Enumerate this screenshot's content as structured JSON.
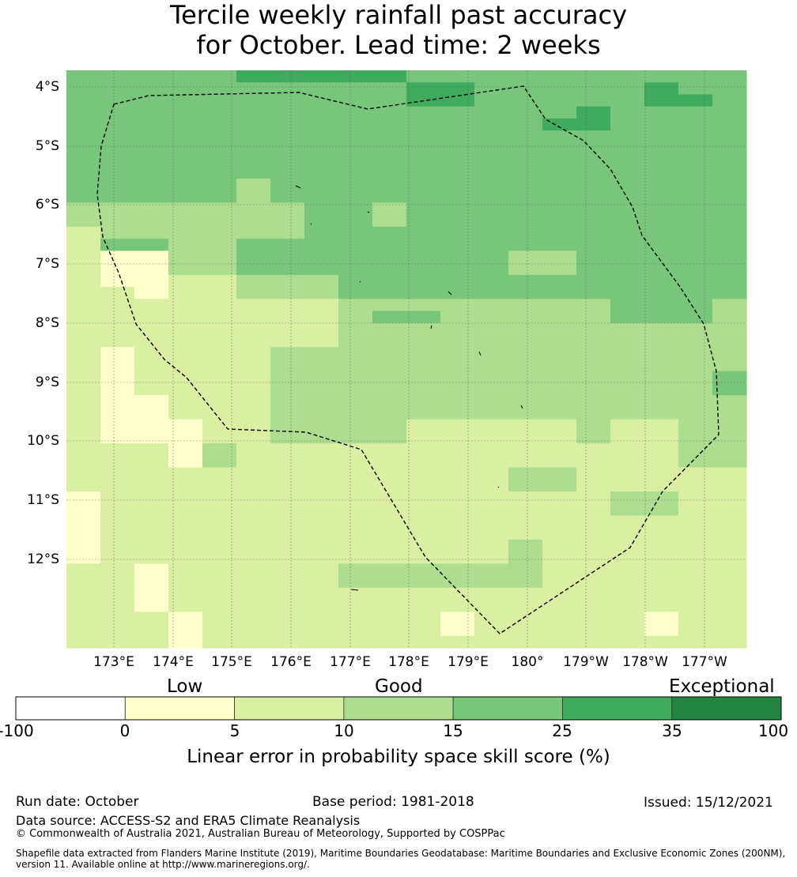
{
  "title": {
    "line1": "Tercile weekly rainfall past accuracy",
    "line2": "for October. Lead time: 2 weeks"
  },
  "map": {
    "lat_labels": [
      "4°S",
      "5°S",
      "6°S",
      "7°S",
      "8°S",
      "9°S",
      "10°S",
      "11°S",
      "12°S"
    ],
    "lon_labels": [
      "173°E",
      "174°E",
      "175°E",
      "176°E",
      "177°E",
      "178°E",
      "179°E",
      "180°",
      "179°W",
      "178°W",
      "177°W"
    ],
    "grid_rows_legend": "0:<0, 1:0-5, 2:5-10, 3:10-15, 4:15-25, 5:25-35, 6:35-100",
    "grid": [
      "44444555554444444444",
      "44444444445544444544",
      "44444444445544444554",
      "44444444444444454444",
      "44444444444444554444",
      "44444444444444444444",
      "44444444444444444444",
      "44444444444444444444",
      "44444444444444444444",
      "44444344444444444444",
      "44444344444444444444",
      "33333334434444444444",
      "33333334434444444444",
      "23333334444444444444",
      "24433444444444444444",
      "21133444444443344444",
      "21133444444443344444",
      "21122333444444444444",
      "22122333444444444444",
      "22222222333333334443",
      "22222222344333334443",
      "22222222333333333333",
      "22222222333333333333",
      "21222233333333333333",
      "21222233333333333333",
      "21222233333333333334",
      "21222233333333333334",
      "21122233333333333333",
      "21122233333333333333",
      "21112233332222232233",
      "21112233332222232233",
      "22213222222222222233",
      "22213222222222222233",
      "22222222222223322222",
      "22222222222223322222",
      "12222222222222223322",
      "12222222222222223322",
      "12222222222222222222",
      "12222222222222222222",
      "12222222222223222222",
      "12222222222223222222",
      "22122222333333222222",
      "22122222333333222222",
      "22122222222222222222",
      "22122222222222222222",
      "22212222222122222122",
      "22212222222122222122",
      "22212222222222222222"
    ]
  },
  "colorbar": {
    "category_labels": [
      "Low",
      "Good",
      "Exceptional"
    ],
    "ticks": [
      "-100",
      "0",
      "5",
      "10",
      "15",
      "25",
      "35",
      "100"
    ],
    "colors": [
      "#ffffff",
      "#ffffcc",
      "#d9f0a3",
      "#addd8e",
      "#78c679",
      "#41ab5d",
      "#238443"
    ],
    "title": "Linear error in probability space skill score (%)"
  },
  "footer": {
    "run_date": "Run date: October",
    "base_period": "Base period: 1981-2018",
    "issued": "Issued: 15/12/2021",
    "data_source": "Data source: ACCESS-S2 and ERA5 Climate Reanalysis",
    "copyright": "© Commonwealth of Australia 2021, Australian Bureau of Meteorology, Supported by COSPPac",
    "shapefile_line1": "Shapefile data extracted from Flanders Marine Institute (2019), Maritime Boundaries Geodatabase: Maritime Boundaries and Exclusive Economic Zones (200NM),",
    "shapefile_line2": "version 11. Available online at http://www.marineregions.org/."
  }
}
